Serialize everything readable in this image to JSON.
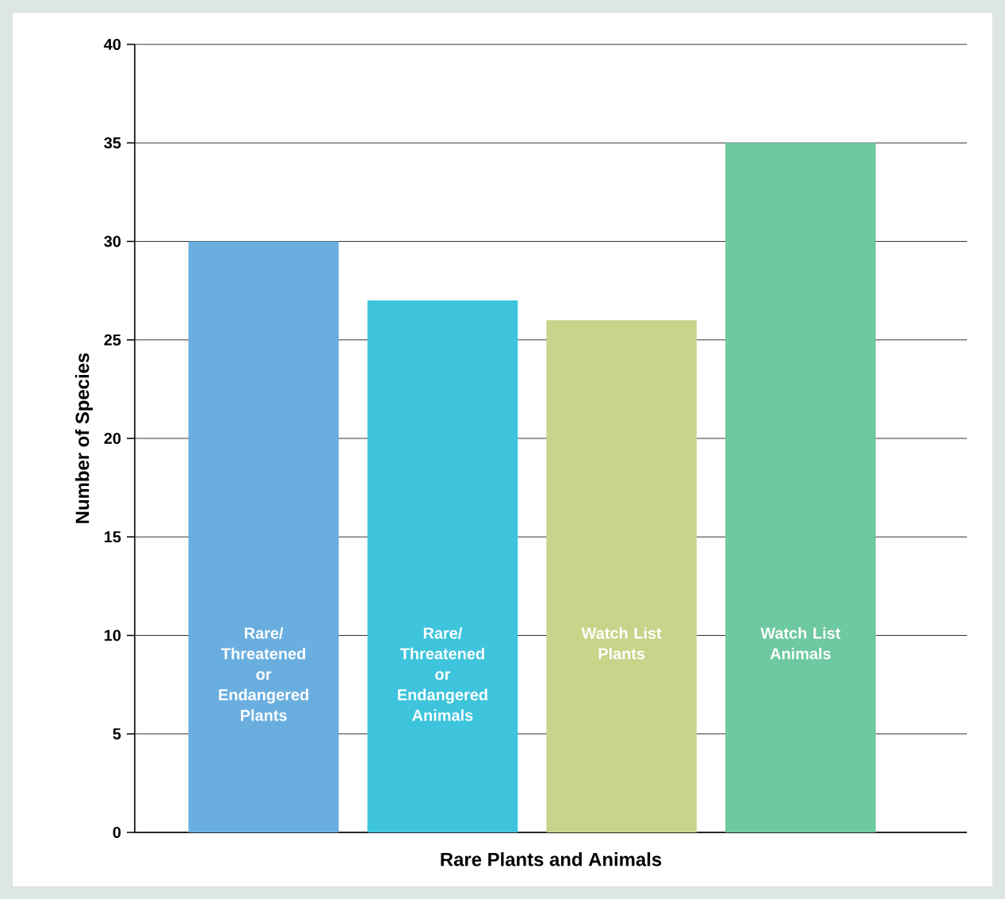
{
  "chart_data": {
    "type": "bar",
    "xlabel": "Rare Plants and Animals",
    "ylabel": "Number of Species",
    "categories": [
      "Rare/ Threatened or Endangered Plants",
      "Rare/ Threatened or Endangered Animals",
      "Watch List Plants",
      "Watch List Animals"
    ],
    "values": [
      30,
      27,
      26,
      35
    ],
    "colors": [
      "#6aaee0",
      "#3ec4dc",
      "#c8d48a",
      "#6ec8a0"
    ],
    "ylim": [
      0,
      40
    ],
    "yticks": [
      0,
      5,
      10,
      15,
      20,
      25,
      30,
      35,
      40
    ],
    "grid": "y"
  }
}
